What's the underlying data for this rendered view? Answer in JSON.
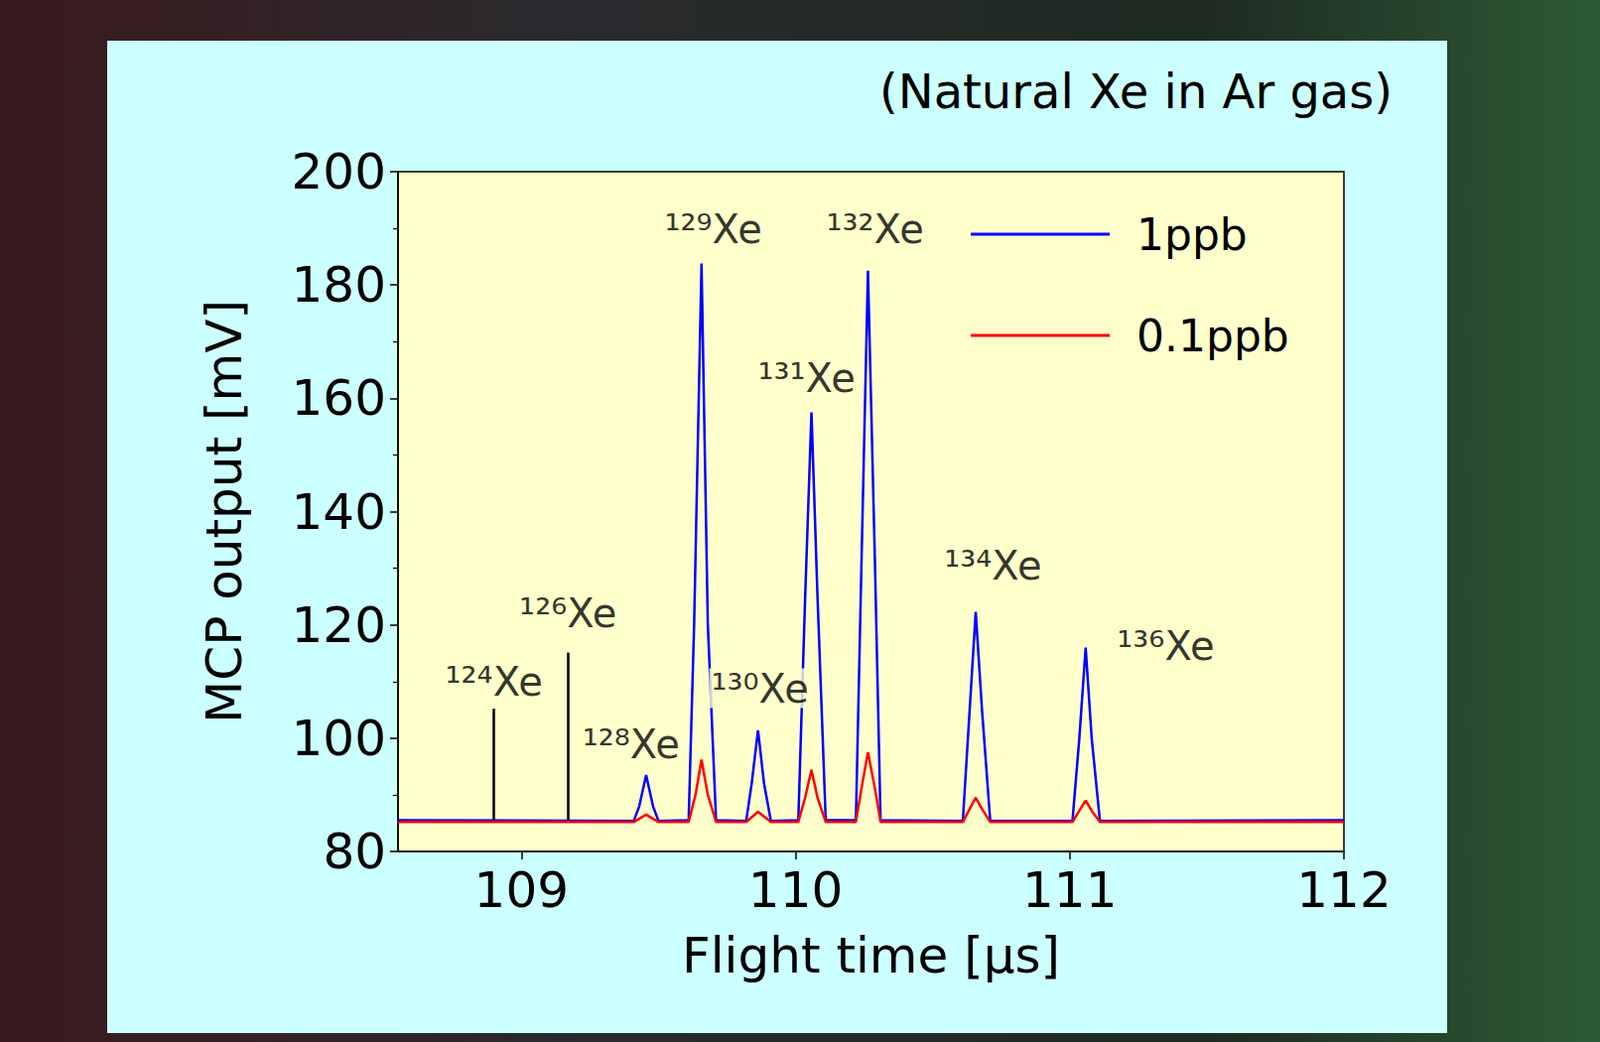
{
  "chart_data": {
    "type": "line",
    "title": "(Natural Xe in Ar gas)",
    "x_label": "Flight time [μs]",
    "y_label": "MCP output [mV]",
    "xlim": [
      108.55,
      112
    ],
    "xticks": [
      109,
      110,
      111,
      112
    ],
    "ylim": [
      80,
      200
    ],
    "yticks": [
      80,
      100,
      120,
      140,
      160,
      180,
      200
    ],
    "grid": false,
    "legend": "upper right",
    "series": [
      {
        "name": "1ppb",
        "color": "#0000ff",
        "x": [
          108.55,
          109.41,
          109.43,
          109.455,
          109.48,
          109.5,
          109.61,
          109.63,
          109.657,
          109.68,
          109.71,
          109.82,
          109.84,
          109.863,
          109.885,
          109.91,
          110.01,
          110.035,
          110.058,
          110.08,
          110.11,
          110.22,
          110.24,
          110.264,
          110.29,
          110.31,
          110.61,
          110.635,
          110.657,
          110.68,
          110.71,
          111.01,
          111.035,
          111.058,
          111.08,
          111.11,
          112
        ],
        "values": [
          85.5,
          85.4,
          88,
          93.5,
          88,
          85.4,
          85.5,
          120,
          183.8,
          120,
          85.5,
          85.4,
          92,
          101.4,
          92,
          85.4,
          85.5,
          125,
          157.5,
          125,
          85.5,
          85.5,
          130,
          182.5,
          130,
          85.5,
          85.4,
          105,
          122.3,
          105,
          85.4,
          85.4,
          100,
          116,
          100,
          85.4,
          85.5
        ]
      },
      {
        "name": "0.1ppb",
        "color": "#ff0000",
        "x": [
          108.55,
          109.41,
          109.455,
          109.5,
          109.61,
          109.635,
          109.657,
          109.68,
          109.71,
          109.82,
          109.863,
          109.91,
          110.01,
          110.035,
          110.058,
          110.08,
          110.11,
          110.22,
          110.24,
          110.264,
          110.29,
          110.31,
          110.61,
          110.635,
          110.657,
          110.68,
          110.71,
          111.01,
          111.035,
          111.058,
          111.08,
          111.11,
          112
        ],
        "values": [
          85.2,
          85.2,
          86.5,
          85.2,
          85.2,
          90,
          96.2,
          90,
          85.2,
          85.2,
          87,
          85.2,
          85.2,
          89.5,
          94.4,
          89.5,
          85.2,
          85.2,
          91,
          97.5,
          91,
          85.2,
          85.2,
          87.5,
          89.5,
          87.5,
          85.2,
          85.2,
          87.2,
          89,
          87.2,
          85.2,
          85.2
        ]
      }
    ],
    "annotations": [
      {
        "text": "¹²⁴Xe",
        "x": 108.9,
        "y": 110,
        "arrow_from": 105.2,
        "arrow_to": 85.5
      },
      {
        "text": "¹²⁶Xe",
        "x": 109.17,
        "y": 122,
        "arrow_from": 115.1,
        "arrow_to": 85.5
      },
      {
        "text": "¹²⁸Xe",
        "x": 109.4,
        "y": 99
      },
      {
        "text": "¹²⁹Xe",
        "x": 109.7,
        "y": 189.8
      },
      {
        "text": "¹³⁰Xe",
        "x": 109.87,
        "y": 108.8
      },
      {
        "text": "¹³¹Xe",
        "x": 110.04,
        "y": 163.6
      },
      {
        "text": "¹³²Xe",
        "x": 110.29,
        "y": 189.8
      },
      {
        "text": "¹³⁴Xe",
        "x": 110.72,
        "y": 130.4
      },
      {
        "text": "¹³⁶Xe",
        "x": 111.35,
        "y": 116.3
      }
    ]
  }
}
